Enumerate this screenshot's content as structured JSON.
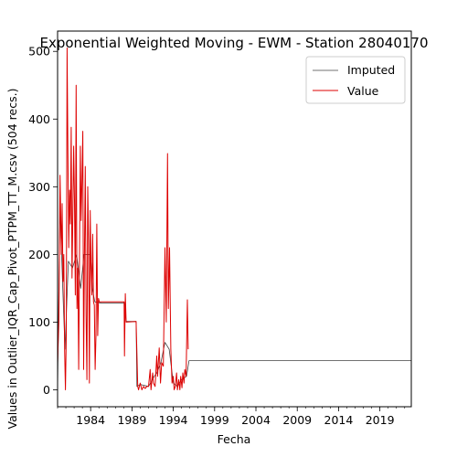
{
  "chart_data": {
    "type": "line",
    "title": "Exponential Weighted Moving - EWM - Station 28040170",
    "xlabel": "Fecha",
    "ylabel": "Values in Outlier_IQR_Cap_Pivot_PTPM_TT_M.csv (504 recs.)",
    "xlim": [
      1980.0,
      2022.8
    ],
    "ylim": [
      -25,
      530
    ],
    "x_ticks": [
      "1984",
      "1989",
      "1994",
      "1999",
      "2004",
      "2009",
      "2014",
      "2019"
    ],
    "y_ticks": [
      0,
      100,
      200,
      300,
      400,
      500
    ],
    "grid": false,
    "legend_position": "top-right",
    "series": [
      {
        "name": "Imputed",
        "color": "#444444",
        "points": [
          [
            1980.0,
            0
          ],
          [
            1980.1,
            100
          ],
          [
            1980.3,
            270
          ],
          [
            1980.6,
            160
          ],
          [
            1980.9,
            60
          ],
          [
            1981.3,
            190
          ],
          [
            1981.8,
            180
          ],
          [
            1982.3,
            200
          ],
          [
            1982.8,
            150
          ],
          [
            1983.2,
            200
          ],
          [
            1983.7,
            200
          ],
          [
            1984.0,
            200
          ],
          [
            1984.2,
            150
          ],
          [
            1984.5,
            130
          ],
          [
            1985.3,
            128
          ],
          [
            1986.0,
            128
          ],
          [
            1987.0,
            128
          ],
          [
            1988.1,
            128
          ],
          [
            1988.3,
            101
          ],
          [
            1989.5,
            101
          ],
          [
            1989.6,
            5
          ],
          [
            1990.0,
            8
          ],
          [
            1991.0,
            5
          ],
          [
            1991.7,
            20
          ],
          [
            1992.0,
            25
          ],
          [
            1992.5,
            40
          ],
          [
            1993.0,
            70
          ],
          [
            1993.5,
            60
          ],
          [
            1993.8,
            30
          ],
          [
            1994.0,
            10
          ],
          [
            1994.5,
            5
          ],
          [
            1995.0,
            15
          ],
          [
            1995.6,
            20
          ],
          [
            1995.9,
            43
          ],
          [
            2000.0,
            43
          ],
          [
            2005.0,
            43
          ],
          [
            2010.0,
            43
          ],
          [
            2015.0,
            43
          ],
          [
            2020.0,
            43
          ],
          [
            2022.8,
            43
          ]
        ]
      },
      {
        "name": "Value",
        "color": "#dd0000",
        "points": [
          [
            1980.0,
            40
          ],
          [
            1980.15,
            100
          ],
          [
            1980.3,
            317
          ],
          [
            1980.45,
            200
          ],
          [
            1980.55,
            275
          ],
          [
            1980.65,
            160
          ],
          [
            1980.75,
            200
          ],
          [
            1980.85,
            60
          ],
          [
            1980.95,
            0
          ],
          [
            1981.05,
            80
          ],
          [
            1981.15,
            505
          ],
          [
            1981.25,
            350
          ],
          [
            1981.35,
            210
          ],
          [
            1981.45,
            295
          ],
          [
            1981.55,
            245
          ],
          [
            1981.65,
            388
          ],
          [
            1981.75,
            165
          ],
          [
            1981.85,
            260
          ],
          [
            1981.95,
            360
          ],
          [
            1982.05,
            280
          ],
          [
            1982.15,
            140
          ],
          [
            1982.25,
            450
          ],
          [
            1982.35,
            120
          ],
          [
            1982.45,
            180
          ],
          [
            1982.55,
            30
          ],
          [
            1982.65,
            200
          ],
          [
            1982.75,
            360
          ],
          [
            1982.85,
            250
          ],
          [
            1982.95,
            310
          ],
          [
            1983.05,
            382
          ],
          [
            1983.15,
            30
          ],
          [
            1983.25,
            200
          ],
          [
            1983.35,
            330
          ],
          [
            1983.45,
            110
          ],
          [
            1983.55,
            15
          ],
          [
            1983.65,
            300
          ],
          [
            1983.75,
            220
          ],
          [
            1983.85,
            10
          ],
          [
            1983.95,
            265
          ],
          [
            1984.05,
            180
          ],
          [
            1984.15,
            140
          ],
          [
            1984.25,
            230
          ],
          [
            1984.35,
            130
          ],
          [
            1984.45,
            125
          ],
          [
            1984.55,
            30
          ],
          [
            1984.65,
            80
          ],
          [
            1984.75,
            245
          ],
          [
            1984.85,
            80
          ],
          [
            1984.95,
            135
          ],
          [
            1985.05,
            130
          ],
          [
            1988.05,
            130
          ],
          [
            1988.1,
            50
          ],
          [
            1988.2,
            142
          ],
          [
            1988.3,
            100
          ],
          [
            1989.5,
            101
          ],
          [
            1989.7,
            5
          ],
          [
            1989.8,
            0
          ],
          [
            1990.0,
            10
          ],
          [
            1990.2,
            0
          ],
          [
            1990.4,
            5
          ],
          [
            1990.6,
            2
          ],
          [
            1990.8,
            5
          ],
          [
            1991.0,
            5
          ],
          [
            1991.2,
            30
          ],
          [
            1991.3,
            0
          ],
          [
            1991.5,
            25
          ],
          [
            1991.6,
            10
          ],
          [
            1991.8,
            5
          ],
          [
            1992.0,
            50
          ],
          [
            1992.1,
            20
          ],
          [
            1992.3,
            62
          ],
          [
            1992.45,
            10
          ],
          [
            1992.6,
            40
          ],
          [
            1992.8,
            35
          ],
          [
            1993.0,
            210
          ],
          [
            1993.15,
            100
          ],
          [
            1993.3,
            349
          ],
          [
            1993.4,
            120
          ],
          [
            1993.55,
            210
          ],
          [
            1993.7,
            60
          ],
          [
            1993.85,
            10
          ],
          [
            1994.0,
            20
          ],
          [
            1994.1,
            0
          ],
          [
            1994.25,
            5
          ],
          [
            1994.4,
            25
          ],
          [
            1994.5,
            0
          ],
          [
            1994.65,
            15
          ],
          [
            1994.8,
            0
          ],
          [
            1994.9,
            20
          ],
          [
            1995.05,
            3
          ],
          [
            1995.15,
            25
          ],
          [
            1995.3,
            10
          ],
          [
            1995.4,
            30
          ],
          [
            1995.55,
            20
          ],
          [
            1995.7,
            133
          ],
          [
            1995.8,
            60
          ]
        ]
      }
    ]
  }
}
